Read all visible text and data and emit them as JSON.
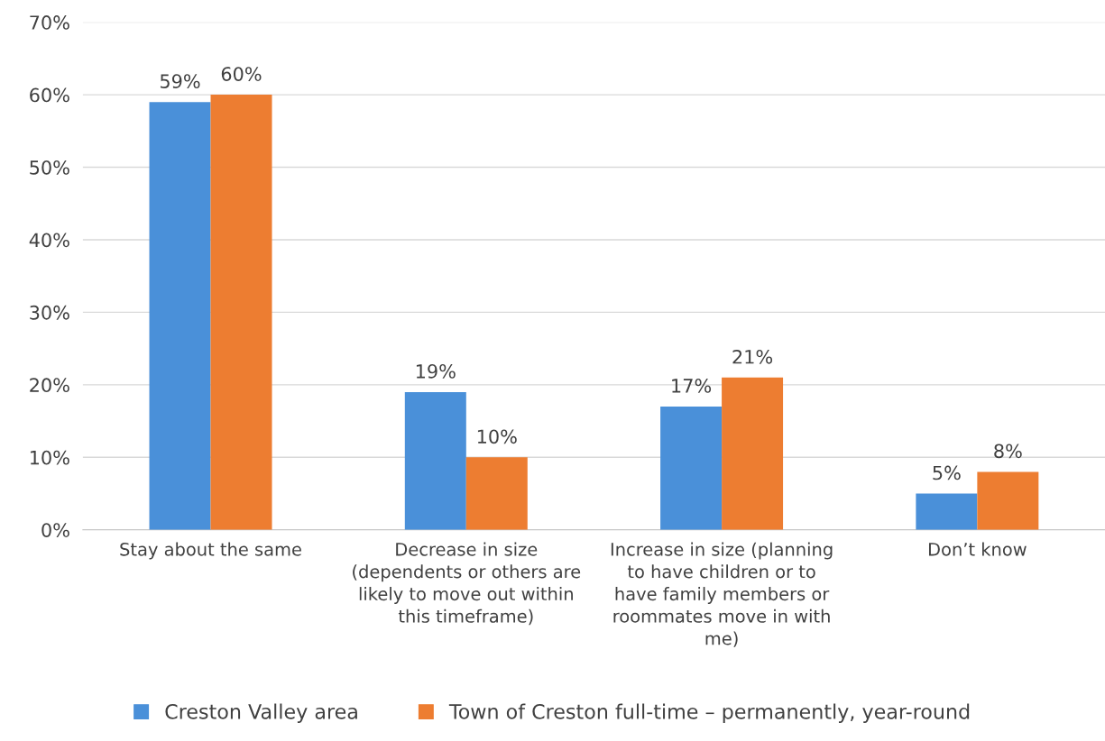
{
  "chart_data": {
    "type": "bar",
    "categories": [
      "Stay about the same",
      "Decrease in size\n(dependents or others are\nlikely to move out within\nthis timeframe)",
      "Increase in size (planning\nto have children or to\nhave family members or\nroommates move in with\nme)",
      "Don’t know"
    ],
    "series": [
      {
        "name": "Creston Valley area",
        "color": "#4a90d9",
        "values": [
          59,
          19,
          17,
          5
        ],
        "value_labels": [
          "59%",
          "19%",
          "17%",
          "5%"
        ]
      },
      {
        "name": "Town of Creston full-time – permanently, year-round",
        "color": "#ed7d31",
        "values": [
          60,
          10,
          21,
          8
        ],
        "value_labels": [
          "60%",
          "10%",
          "21%",
          "8%"
        ]
      }
    ],
    "ylim": [
      0,
      70
    ],
    "yticks": [
      {
        "value": 0,
        "label": "0%"
      },
      {
        "value": 10,
        "label": "10%"
      },
      {
        "value": 20,
        "label": "20%"
      },
      {
        "value": 30,
        "label": "30%"
      },
      {
        "value": 40,
        "label": "40%"
      },
      {
        "value": 50,
        "label": "50%"
      },
      {
        "value": 60,
        "label": "60%"
      },
      {
        "value": 70,
        "label": "70%"
      }
    ],
    "grid": "y",
    "legend": "bottom"
  }
}
